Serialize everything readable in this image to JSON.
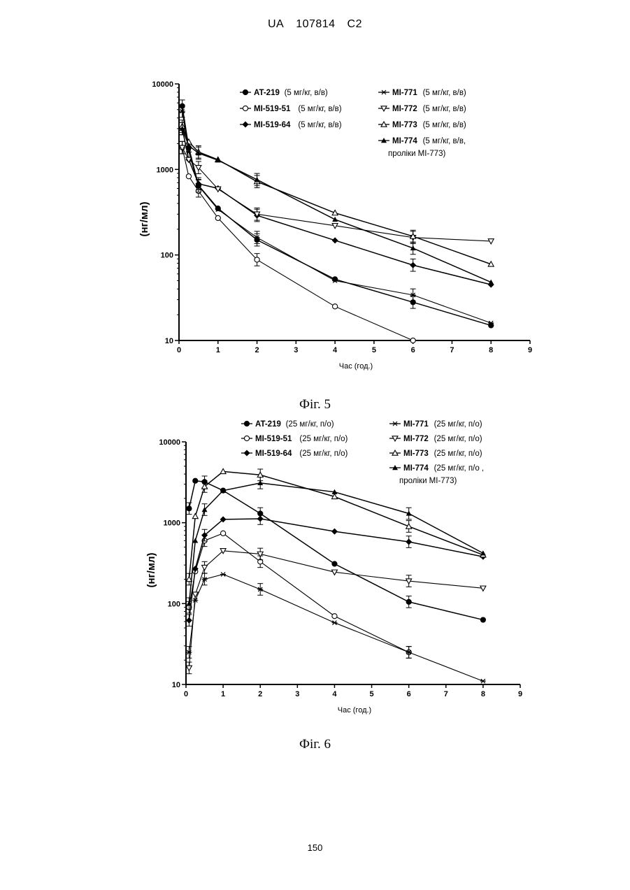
{
  "header": {
    "country": "UA",
    "number": "107814",
    "kind": "C2"
  },
  "page_number": "150",
  "chart_data": [
    {
      "type": "line",
      "caption": "Фіг. 5",
      "xlabel": "Час (год.)",
      "ylabel": "(нг/мл)",
      "xlim": [
        0,
        9
      ],
      "ylim": [
        10,
        10000
      ],
      "yscale": "log",
      "xticks": [
        "0",
        "1",
        "2",
        "3",
        "4",
        "5",
        "6",
        "7",
        "8",
        "9"
      ],
      "yticks": [
        "10",
        "100",
        "1000",
        "10000"
      ],
      "grid": false,
      "legend": "top-right",
      "series": [
        {
          "name": "AT-219",
          "dose": "(5 мг/кг, в/в)",
          "marker": "circle-filled",
          "x": [
            0.083,
            0.25,
            0.5,
            1,
            2,
            4,
            6,
            8
          ],
          "y": [
            5500,
            1800,
            650,
            350,
            150,
            52,
            28,
            15
          ]
        },
        {
          "name": "MI-519-51",
          "dose": "(5 мг/кг, в/в)",
          "marker": "circle-open",
          "x": [
            0.083,
            0.25,
            0.5,
            1,
            2,
            4,
            6
          ],
          "y": [
            1800,
            830,
            560,
            270,
            88,
            25,
            10
          ]
        },
        {
          "name": "MI-519-64",
          "dose": "(5 мг/кг, в/в)",
          "marker": "diamond-filled",
          "x": [
            0.083,
            0.25,
            0.5,
            1,
            2,
            4,
            6,
            8
          ],
          "y": [
            3000,
            1300,
            680,
            600,
            290,
            148,
            76,
            45
          ]
        },
        {
          "name": "MI-771",
          "dose": "(5 мг/кг, в/в)",
          "marker": "star",
          "x": [
            0.083,
            0.25,
            0.5,
            1,
            2,
            4,
            6,
            8
          ],
          "y": [
            4800,
            1600,
            640,
            340,
            160,
            50,
            34,
            16
          ]
        },
        {
          "name": "MI-772",
          "dose": "(5 мг/кг, в/в)",
          "marker": "triangle-down-open",
          "x": [
            0.083,
            0.25,
            0.5,
            1,
            2,
            4,
            6,
            8
          ],
          "y": [
            1800,
            1300,
            1050,
            590,
            300,
            220,
            160,
            145
          ]
        },
        {
          "name": "MI-773",
          "dose": "(5 мг/кг, в/в)",
          "marker": "triangle-up-open",
          "x": [
            0.083,
            0.25,
            0.5,
            1,
            2,
            4,
            6,
            8
          ],
          "y": [
            3200,
            2100,
            1600,
            1300,
            720,
            310,
            165,
            78
          ]
        },
        {
          "name": "MI-774",
          "dose": "(5 мг/кг, в/в,",
          "dose2": "проліки МІ-773)",
          "marker": "triangle-up-filled",
          "x": [
            0.083,
            0.25,
            0.5,
            1,
            2,
            4,
            6,
            8
          ],
          "y": [
            3000,
            1900,
            1550,
            1280,
            760,
            260,
            120,
            48
          ]
        }
      ]
    },
    {
      "type": "line",
      "caption": "Фіг. 6",
      "xlabel": "Час (год.)",
      "ylabel": "(нг/мл)",
      "xlim": [
        0,
        9
      ],
      "ylim": [
        10,
        10000
      ],
      "yscale": "log",
      "xticks": [
        "0",
        "1",
        "2",
        "3",
        "4",
        "5",
        "6",
        "7",
        "8",
        "9"
      ],
      "yticks": [
        "10",
        "100",
        "1000",
        "10000"
      ],
      "grid": false,
      "legend": "top-right",
      "series": [
        {
          "name": "AT-219",
          "dose": "(25 мг/кг, п/о)",
          "marker": "circle-filled",
          "x": [
            0.083,
            0.25,
            0.5,
            1,
            2,
            4,
            6,
            8
          ],
          "y": [
            1500,
            3300,
            3200,
            2500,
            1300,
            310,
            105,
            63
          ]
        },
        {
          "name": "MI-519-51",
          "dose": "(25 мг/кг, п/о)",
          "marker": "circle-open",
          "x": [
            0.083,
            0.25,
            0.5,
            1,
            2,
            4,
            6
          ],
          "y": [
            90,
            250,
            600,
            740,
            330,
            70,
            25
          ]
        },
        {
          "name": "MI-519-64",
          "dose": "(25 мг/кг, п/о)",
          "marker": "diamond-filled",
          "x": [
            0.083,
            0.25,
            0.5,
            1,
            2,
            4,
            6,
            8
          ],
          "y": [
            62,
            270,
            700,
            1100,
            1120,
            780,
            580,
            380
          ]
        },
        {
          "name": "MI-771",
          "dose": "(25 мг/кг, п/о)",
          "marker": "star",
          "x": [
            0.083,
            0.25,
            0.5,
            1,
            2,
            4,
            6,
            8
          ],
          "y": [
            25,
            110,
            200,
            230,
            150,
            58,
            25,
            11
          ]
        },
        {
          "name": "MI-772",
          "dose": "(25 мг/кг, п/о)",
          "marker": "triangle-down-open",
          "x": [
            0.083,
            0.25,
            0.5,
            1,
            2,
            4,
            6,
            8
          ],
          "y": [
            16,
            130,
            280,
            450,
            410,
            245,
            190,
            155
          ]
        },
        {
          "name": "MI-773",
          "dose": "(25 мг/кг, п/о)",
          "marker": "triangle-up-open",
          "x": [
            0.083,
            0.25,
            0.5,
            1,
            2,
            4,
            6,
            8
          ],
          "y": [
            200,
            1200,
            2800,
            4300,
            3900,
            2100,
            900,
            400
          ]
        },
        {
          "name": "MI-774",
          "dose": "(25 мг/кг, п/о ,",
          "dose2": "проліки МІ-773)",
          "marker": "triangle-up-filled",
          "x": [
            0.083,
            0.25,
            0.5,
            1,
            2,
            4,
            6,
            8
          ],
          "y": [
            100,
            600,
            1450,
            2500,
            3100,
            2400,
            1300,
            420
          ]
        }
      ]
    }
  ]
}
